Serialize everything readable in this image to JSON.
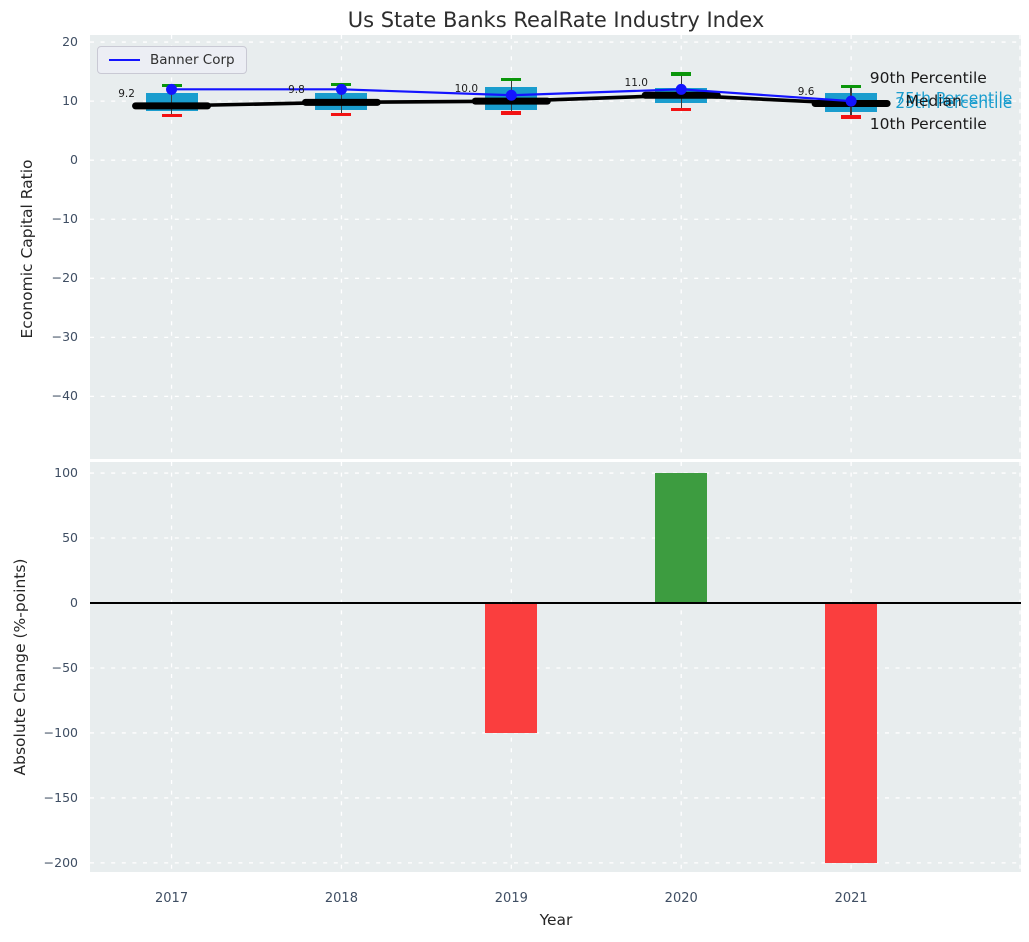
{
  "chart_data": {
    "type": "combo",
    "title": "Us State Banks RealRate Industry Index",
    "xlabel": "Year",
    "years": [
      2017,
      2018,
      2019,
      2020,
      2021
    ],
    "x_tick_labels": [
      "2017",
      "2018",
      "2019",
      "2020",
      "2021"
    ],
    "xlim": [
      2016.52,
      2022.0
    ],
    "grid": "white-dashed",
    "top_panel": {
      "type": "line+percentile-band",
      "ylabel": "Economic Capital Ratio",
      "ylim": [
        -50.6,
        21.2
      ],
      "yticks": [
        {
          "v": 20,
          "label": "20"
        },
        {
          "v": 10,
          "label": "10"
        },
        {
          "v": 0,
          "label": "0"
        },
        {
          "v": -10,
          "label": "−10"
        },
        {
          "v": -20,
          "label": "−20"
        },
        {
          "v": -30,
          "label": "−30"
        },
        {
          "v": -40,
          "label": "−40"
        }
      ],
      "company_series": {
        "name": "Banner Corp",
        "values": [
          12,
          12,
          11,
          12,
          10
        ]
      },
      "median_series": {
        "name": "Median",
        "values": [
          9.2,
          9.8,
          10.0,
          11.0,
          9.6
        ],
        "labels": [
          "9.2",
          "9.8",
          "10.0",
          "11.0",
          "9.6"
        ]
      },
      "percentiles": {
        "p90": [
          12.7,
          12.8,
          13.6,
          14.6,
          12.5
        ],
        "p75": [
          11.4,
          11.4,
          12.4,
          12.2,
          11.4
        ],
        "p25": [
          8.4,
          8.5,
          8.5,
          9.6,
          8.1
        ],
        "p10": [
          7.5,
          7.7,
          8.0,
          8.6,
          7.3
        ]
      },
      "annotations": [
        {
          "text": "90th Percentile",
          "color": "#1a1a1a",
          "x": 2021.11,
          "y": 14.0
        },
        {
          "text": "75th Percentile",
          "color": "#1a9dce",
          "x": 2021.26,
          "y": 10.45
        },
        {
          "text": "25th Percentile",
          "color": "#1a9dce",
          "x": 2021.26,
          "y": 9.75
        },
        {
          "text": "Median",
          "color": "#1a1a1a",
          "x": 2021.32,
          "y": 10.1
        },
        {
          "text": "10th Percentile",
          "color": "#1a1a1a",
          "x": 2021.11,
          "y": 6.1
        }
      ],
      "legend": {
        "label": "Banner Corp",
        "position": "upper left"
      }
    },
    "bottom_panel": {
      "type": "bar",
      "ylabel": "Absolute Change (%-points)",
      "ylim": [
        -207,
        108.5
      ],
      "yticks": [
        {
          "v": 100,
          "label": "100"
        },
        {
          "v": 50,
          "label": "50"
        },
        {
          "v": 0,
          "label": "0"
        },
        {
          "v": -50,
          "label": "−50"
        },
        {
          "v": -100,
          "label": "−100"
        },
        {
          "v": -150,
          "label": "−150"
        },
        {
          "v": -200,
          "label": "−200"
        }
      ],
      "values": [
        null,
        0,
        -100,
        100,
        -200
      ]
    }
  },
  "colors": {
    "plot_bg": "#e8edee",
    "grid": "#ffffff",
    "banner_line": "#1414ff",
    "median_line": "#000000",
    "box_fill": "#1a9dce",
    "whisker": "#3a3a3a",
    "p90_cap": "#0a960a",
    "p10_cap": "#f21212",
    "bar_positive": "#3d9c40",
    "bar_negative": "#fa3e3e",
    "tick_label": "#3f4e63",
    "value_label": "#1d1d1d",
    "zero_line": "#000000"
  }
}
